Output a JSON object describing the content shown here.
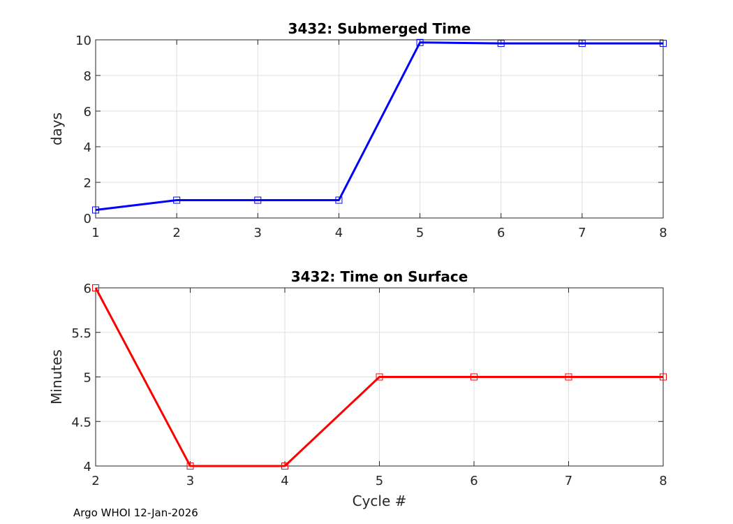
{
  "chart_data": [
    {
      "type": "line",
      "title": "3432: Submerged Time",
      "xlabel": "",
      "ylabel": "days",
      "xlim": [
        1,
        8
      ],
      "ylim": [
        0,
        10
      ],
      "xticks": [
        "1",
        "2",
        "3",
        "4",
        "5",
        "6",
        "7",
        "8"
      ],
      "yticks": [
        "0",
        "2",
        "4",
        "6",
        "8",
        "10"
      ],
      "grid": true,
      "color": "#0000ff",
      "marker": "square",
      "x": [
        1,
        2,
        3,
        4,
        5,
        6,
        7,
        8
      ],
      "y": [
        0.45,
        1.0,
        1.0,
        1.0,
        9.85,
        9.8,
        9.8,
        9.8
      ]
    },
    {
      "type": "line",
      "title": "3432: Time on Surface",
      "xlabel": "Cycle #",
      "ylabel": "Minutes",
      "xlim": [
        2,
        8
      ],
      "ylim": [
        4,
        6
      ],
      "xticks": [
        "2",
        "3",
        "4",
        "5",
        "6",
        "7",
        "8"
      ],
      "yticks": [
        "4",
        "4.5",
        "5",
        "5.5",
        "6"
      ],
      "grid": true,
      "color": "#ff0000",
      "marker": "square",
      "x": [
        2,
        3,
        4,
        5,
        6,
        7,
        8
      ],
      "y": [
        6,
        4,
        4,
        5,
        5,
        5,
        5
      ]
    }
  ],
  "footer": "Argo WHOI 12-Jan-2026"
}
